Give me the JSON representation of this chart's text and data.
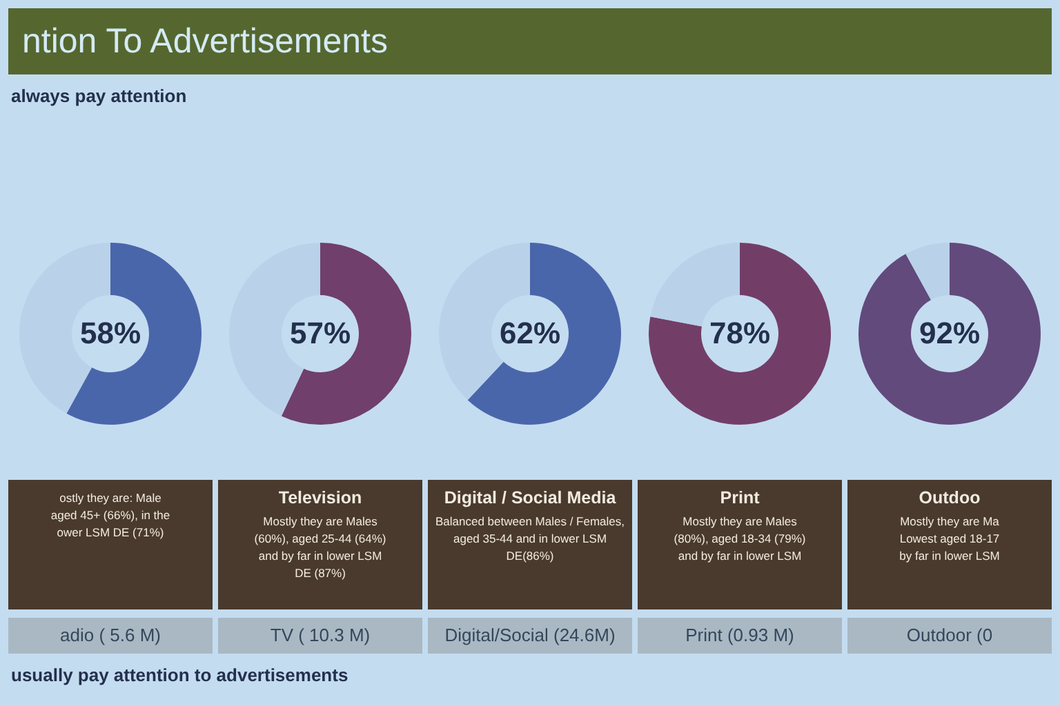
{
  "chart_data": [
    {
      "type": "other",
      "title": "ntion To Advertisements",
      "subtitle": "always pay attention",
      "annotations": [
        "usually pay attention to advertisements"
      ]
    },
    {
      "type": "donut",
      "categories": [
        null,
        null
      ],
      "values": [
        58,
        42
      ],
      "colors": [
        "#4a66ab",
        "#b9d2e9"
      ],
      "value_labels": [
        "58%",
        null
      ],
      "annotations": [
        "ostly they are: Male",
        "aged 45+ (66%), in the",
        "ower LSM DE (71%)"
      ],
      "xlabel": "adio ( 5.6 M)"
    },
    {
      "type": "donut",
      "title": "Television",
      "categories": [
        null,
        null
      ],
      "values": [
        57,
        43
      ],
      "colors": [
        "#703f6c",
        "#b9d2e9"
      ],
      "value_labels": [
        "57%",
        null
      ],
      "annotations": [
        "Mostly they are Males",
        "(60%), aged 25-44 (64%)",
        "and by far in lower LSM",
        "DE (87%)"
      ],
      "xlabel": "TV ( 10.3 M)"
    },
    {
      "type": "donut",
      "title": "Digital / Social Media",
      "categories": [
        null,
        null
      ],
      "values": [
        62,
        38
      ],
      "colors": [
        "#4a66ab",
        "#b9d2e9"
      ],
      "value_labels": [
        "62%",
        null
      ],
      "annotations": [
        "Balanced between Males / Females,",
        "aged 35-44 and in lower LSM",
        "DE(86%)"
      ],
      "xlabel": "Digital/Social (24.6M)"
    },
    {
      "type": "donut",
      "title": "Print",
      "categories": [
        null,
        null
      ],
      "values": [
        78,
        22
      ],
      "colors": [
        "#723e68",
        "#b9d2e9"
      ],
      "value_labels": [
        "78%",
        null
      ],
      "annotations": [
        "Mostly they are Males",
        "(80%), aged 18-34 (79%)",
        "and by far in lower LSM"
      ],
      "xlabel": "Print (0.93 M)"
    },
    {
      "type": "donut",
      "title": "Outdoo",
      "categories": [
        null,
        null
      ],
      "values": [
        92,
        8
      ],
      "colors": [
        "#624a7c",
        "#b9d2e9"
      ],
      "value_labels": [
        "92%",
        null
      ],
      "annotations": [
        "Mostly they are Ma",
        "Lowest aged 18-17",
        "by far in lower LSM"
      ],
      "xlabel": "Outdoor (0"
    }
  ]
}
